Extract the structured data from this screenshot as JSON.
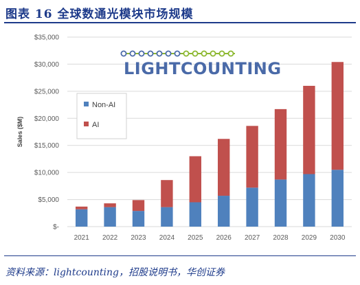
{
  "figure": {
    "title": "图表 16    全球数通光模块市场规模",
    "source": "资料来源：lightcounting，招股说明书，华创证券"
  },
  "logo": {
    "text": "LIGHTCOUNTING",
    "text_color": "#4a6aa8",
    "dots_color": "#8cb82f"
  },
  "chart_data": {
    "type": "bar",
    "stacked": true,
    "categories": [
      "2021",
      "2022",
      "2023",
      "2024",
      "2025",
      "2026",
      "2027",
      "2028",
      "2029",
      "2030"
    ],
    "series": [
      {
        "name": "Non-AI",
        "color": "#4f81bd",
        "values": [
          3200,
          3600,
          2900,
          3600,
          4500,
          5700,
          7200,
          8700,
          9700,
          10500
        ]
      },
      {
        "name": "AI",
        "color": "#c0504d",
        "values": [
          500,
          700,
          2000,
          5000,
          8500,
          10500,
          11400,
          13000,
          16300,
          19900
        ]
      }
    ],
    "title": "",
    "xlabel": "",
    "ylabel": "Sales ($M)",
    "ylim": [
      0,
      35000
    ],
    "yticks": [
      0,
      5000,
      10000,
      15000,
      20000,
      25000,
      30000,
      35000
    ],
    "ytick_labels": [
      "$-",
      "$5,000",
      "$10,000",
      "$15,000",
      "$20,000",
      "$25,000",
      "$30,000",
      "$35,000"
    ],
    "grid": true,
    "legend": "upper-left"
  }
}
